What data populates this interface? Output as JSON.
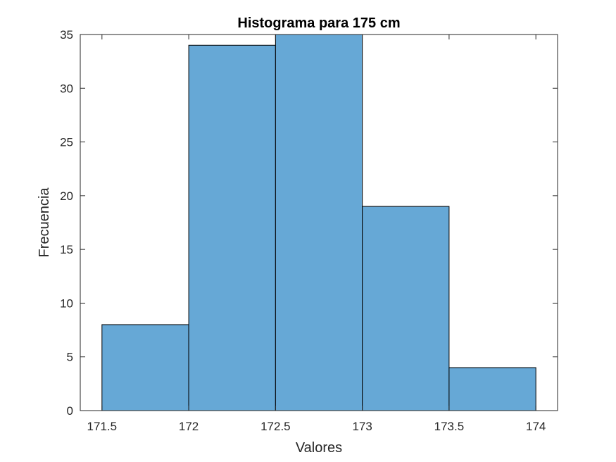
{
  "chart_data": {
    "type": "bar",
    "title": "Histograma para 175 cm",
    "xlabel": "Valores",
    "ylabel": "Frecuencia",
    "bin_edges": [
      171.5,
      172,
      172.5,
      173,
      173.5,
      174
    ],
    "values": [
      8,
      34,
      35,
      19,
      4
    ],
    "xlim": [
      171.375,
      174.125
    ],
    "ylim": [
      0,
      35
    ],
    "xticks": [
      171.5,
      172,
      172.5,
      173,
      173.5,
      174
    ],
    "xtick_labels": [
      "171.5",
      "172",
      "172.5",
      "173",
      "173.5",
      "174"
    ],
    "yticks": [
      0,
      5,
      10,
      15,
      20,
      25,
      30,
      35
    ],
    "ytick_labels": [
      "0",
      "5",
      "10",
      "15",
      "20",
      "25",
      "30",
      "35"
    ],
    "grid": false,
    "legend": "none",
    "bar_color": "#66a8d6",
    "edge_color": "#000000"
  }
}
